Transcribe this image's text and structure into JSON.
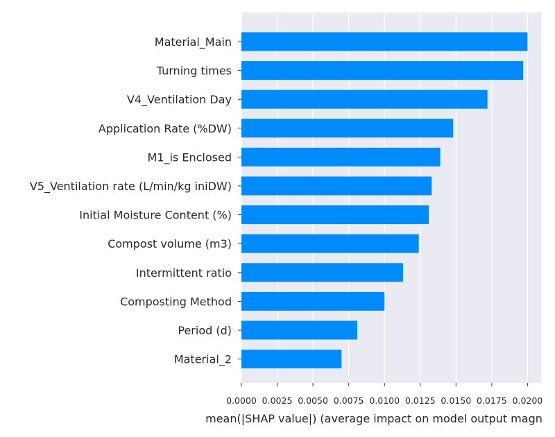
{
  "chart_data": {
    "type": "bar",
    "orientation": "horizontal",
    "categories": [
      "Material_Main",
      "Turning times",
      "V4_Ventilation Day",
      "Application Rate (%DW)",
      "M1_is Enclosed",
      "V5_Ventilation rate (L/min/kg iniDW)",
      "Initial Moisture Content (%)",
      "Compost volume (m3)",
      "Intermittent ratio",
      "Composting Method",
      "Period (d)",
      "Material_2"
    ],
    "values": [
      0.02,
      0.0197,
      0.0172,
      0.0148,
      0.0139,
      0.0133,
      0.0131,
      0.0124,
      0.0113,
      0.01,
      0.0081,
      0.007
    ],
    "xlabel": "mean(|SHAP value|) (average impact on model output magn",
    "ylabel": "",
    "xlim": [
      0,
      0.0209
    ],
    "xticks": [
      "0.0000",
      "0.0025",
      "0.0050",
      "0.0075",
      "0.0100",
      "0.0125",
      "0.0150",
      "0.0175",
      "0.0200"
    ],
    "grid": true,
    "colors": {
      "bar": "#008bfb",
      "plot_background": "#eaeaf2",
      "grid": "#ffffff",
      "text": "#262626"
    }
  }
}
